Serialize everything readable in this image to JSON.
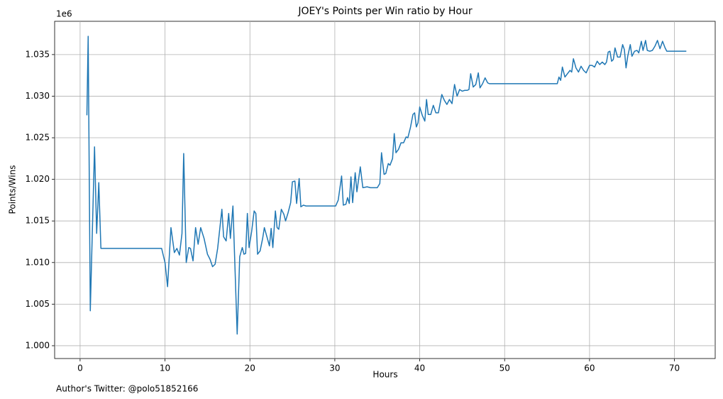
{
  "chart_data": {
    "type": "line",
    "title": "JOEY's Points per Win ratio by Hour",
    "x_label": "Hours",
    "y_label": "Points/Wins",
    "y_offset_label": "1e6",
    "footer": "Author's Twitter: @polo51852166",
    "grid": true,
    "xlim": [
      -3.0,
      74.8
    ],
    "ylim": [
      0.99846,
      1.039
    ],
    "xticks": [
      0,
      10,
      20,
      30,
      40,
      50,
      60,
      70
    ],
    "yticks": [
      {
        "value": 1.0,
        "label": "1.000"
      },
      1.005,
      {
        "value": 1.01,
        "label": "1.010"
      },
      1.015,
      {
        "value": 1.02,
        "label": "1.020"
      },
      1.025,
      {
        "value": 1.03,
        "label": "1.030"
      },
      1.035
    ],
    "x": [
      0.8,
      0.95,
      1.2,
      1.7,
      1.95,
      2.2,
      2.45,
      9.6,
      10.0,
      10.3,
      10.7,
      11.1,
      11.4,
      11.7,
      12.0,
      12.2,
      12.5,
      12.8,
      13.0,
      13.3,
      13.6,
      13.9,
      14.2,
      14.6,
      15.0,
      15.3,
      15.6,
      15.9,
      16.2,
      16.7,
      16.9,
      17.2,
      17.5,
      17.7,
      18.0,
      18.5,
      18.8,
      19.1,
      19.3,
      19.5,
      19.7,
      19.9,
      20.2,
      20.5,
      20.7,
      20.9,
      21.2,
      21.5,
      21.7,
      22.0,
      22.3,
      22.5,
      22.7,
      23.0,
      23.2,
      23.4,
      23.7,
      24.0,
      24.2,
      24.5,
      24.8,
      25.0,
      25.3,
      25.5,
      25.8,
      26.0,
      26.3,
      26.6,
      30.1,
      30.4,
      30.8,
      31.0,
      31.3,
      31.5,
      31.7,
      31.9,
      32.1,
      32.4,
      32.6,
      33.0,
      33.3,
      33.8,
      34.2,
      35.0,
      35.3,
      35.5,
      35.8,
      36.0,
      36.3,
      36.5,
      36.8,
      37.0,
      37.2,
      37.5,
      37.8,
      38.1,
      38.4,
      38.6,
      38.9,
      39.2,
      39.4,
      39.6,
      39.8,
      40.0,
      40.3,
      40.6,
      40.8,
      41.0,
      41.3,
      41.6,
      41.9,
      42.2,
      42.6,
      42.9,
      43.2,
      43.5,
      43.8,
      44.1,
      44.4,
      44.7,
      45.0,
      45.3,
      45.6,
      45.8,
      46.0,
      46.3,
      46.6,
      46.9,
      47.1,
      47.4,
      47.7,
      48.0,
      48.2,
      56.2,
      56.4,
      56.6,
      56.8,
      57.1,
      57.4,
      57.7,
      57.9,
      58.1,
      58.4,
      58.7,
      59.0,
      59.3,
      59.6,
      60.0,
      60.3,
      60.6,
      60.9,
      61.2,
      61.5,
      61.8,
      62.0,
      62.2,
      62.4,
      62.6,
      62.8,
      63.0,
      63.3,
      63.6,
      63.9,
      64.1,
      64.3,
      64.5,
      64.8,
      65.0,
      65.3,
      65.6,
      65.8,
      66.1,
      66.3,
      66.6,
      66.8,
      67.1,
      67.4,
      67.7,
      68.0,
      68.3,
      68.6,
      68.9,
      69.1,
      71.4
    ],
    "series": [
      {
        "name": "Points/Wins",
        "color": "#1f77b4",
        "values": [
          1.0277,
          1.0372,
          1.0042,
          1.0239,
          1.0135,
          1.0196,
          1.0117,
          1.0117,
          1.01,
          1.0071,
          1.0142,
          1.0112,
          1.0117,
          1.0109,
          1.0135,
          1.0231,
          1.01,
          1.0118,
          1.0117,
          1.0102,
          1.0142,
          1.0122,
          1.0142,
          1.0129,
          1.011,
          1.0104,
          1.0095,
          1.0098,
          1.0117,
          1.0164,
          1.0131,
          1.0126,
          1.0159,
          1.0129,
          1.0168,
          1.0014,
          1.0107,
          1.0118,
          1.011,
          1.0111,
          1.0159,
          1.0118,
          1.0137,
          1.0162,
          1.0159,
          1.011,
          1.0114,
          1.0129,
          1.0142,
          1.0131,
          1.012,
          1.0141,
          1.0118,
          1.0162,
          1.0142,
          1.014,
          1.0164,
          1.0158,
          1.015,
          1.016,
          1.0172,
          1.0197,
          1.0198,
          1.0171,
          1.0201,
          1.0167,
          1.0169,
          1.0168,
          1.0168,
          1.0175,
          1.0204,
          1.0169,
          1.017,
          1.0178,
          1.0171,
          1.0203,
          1.0172,
          1.0208,
          1.0185,
          1.0215,
          1.019,
          1.0191,
          1.019,
          1.019,
          1.0195,
          1.0232,
          1.0206,
          1.0207,
          1.0219,
          1.0217,
          1.0225,
          1.0255,
          1.0232,
          1.0236,
          1.0244,
          1.0244,
          1.0251,
          1.025,
          1.0262,
          1.0278,
          1.028,
          1.0263,
          1.0268,
          1.0287,
          1.0277,
          1.027,
          1.0296,
          1.0278,
          1.0278,
          1.0289,
          1.028,
          1.028,
          1.0302,
          1.0295,
          1.029,
          1.0296,
          1.0291,
          1.0314,
          1.03,
          1.0308,
          1.0306,
          1.0307,
          1.0307,
          1.0308,
          1.0327,
          1.0311,
          1.0314,
          1.0328,
          1.031,
          1.0315,
          1.0322,
          1.0316,
          1.0315,
          1.0315,
          1.0323,
          1.0319,
          1.0335,
          1.0323,
          1.0327,
          1.0331,
          1.0329,
          1.0345,
          1.0334,
          1.0329,
          1.0336,
          1.0331,
          1.0328,
          1.0337,
          1.0337,
          1.0335,
          1.0342,
          1.0338,
          1.0341,
          1.0338,
          1.0341,
          1.0353,
          1.0354,
          1.0342,
          1.0344,
          1.0358,
          1.0347,
          1.0347,
          1.0362,
          1.0356,
          1.0334,
          1.0348,
          1.0362,
          1.0348,
          1.0354,
          1.0355,
          1.0352,
          1.0366,
          1.0355,
          1.0367,
          1.0355,
          1.0354,
          1.0355,
          1.036,
          1.0367,
          1.0357,
          1.0366,
          1.0358,
          1.0354,
          1.0354
        ]
      }
    ]
  }
}
